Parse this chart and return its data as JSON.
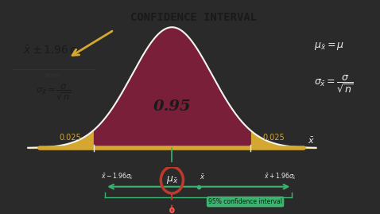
{
  "bg_color": "#2a2a2a",
  "title_text": "CONFIDENCE INTERVAL",
  "title_bg": "#d4a830",
  "title_fg": "#1a1a1a",
  "curve_fill_color": "#7a1f3a",
  "curve_edge_color": "#f5f5f0",
  "tail_fill_color": "#d4a830",
  "bar_color": "#d4a830",
  "ci_bar_color": "#3cb371",
  "mu_circle_color": "#c0392b",
  "text_color": "#f0f0f0",
  "yellow_text": "#d4a830",
  "label_095": "0.95",
  "label_0025": "0.025",
  "ci_label": "95% confidence interval"
}
